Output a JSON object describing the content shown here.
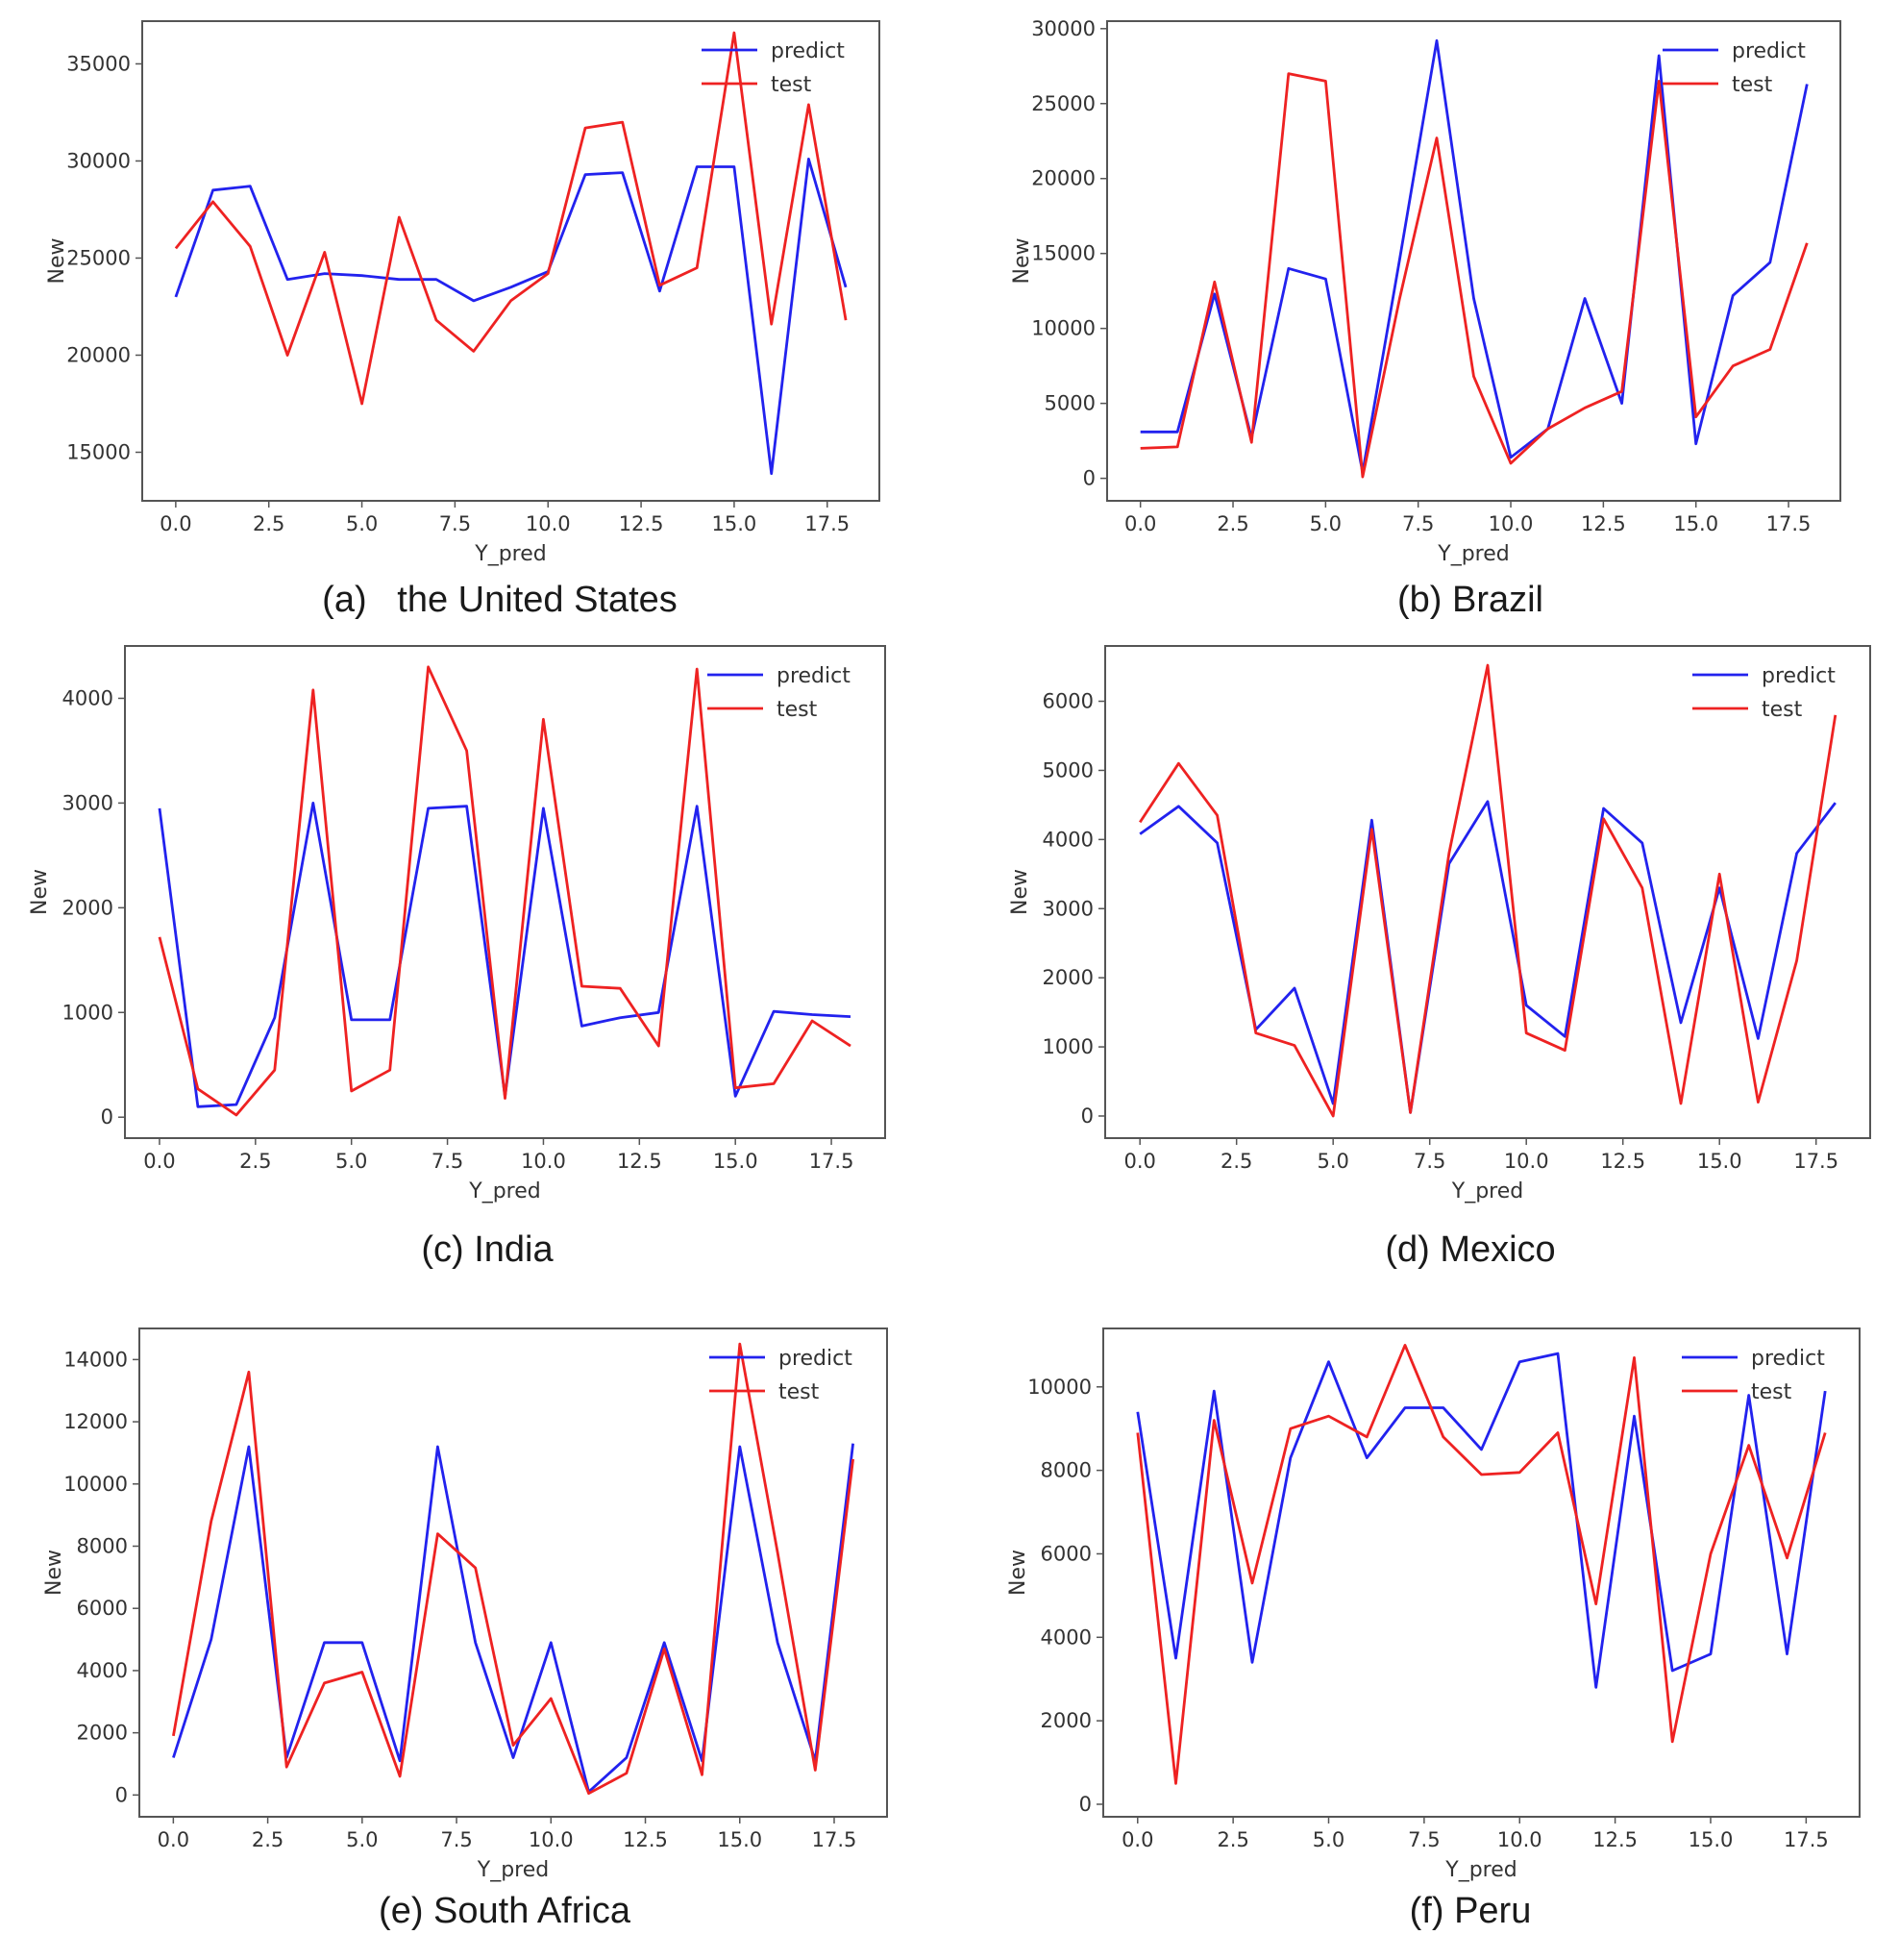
{
  "figure": {
    "colors": {
      "predict": "#2222ee",
      "test": "#ee2222",
      "axes": "#555555",
      "text": "#333333"
    },
    "legend": {
      "predict_label": "predict",
      "test_label": "test",
      "placement": "top-right"
    }
  },
  "chart_data": [
    {
      "type": "line",
      "title": "(a)   the United States",
      "xlabel": "Y_pred",
      "ylabel": "New",
      "xlim": [
        -0.9,
        18.9
      ],
      "ylim": [
        12500,
        37200
      ],
      "xticks": [
        0,
        2.5,
        5,
        7.5,
        10,
        12.5,
        15,
        17.5
      ],
      "xtick_labels": [
        "0.0",
        "2.5",
        "5.0",
        "7.5",
        "10.0",
        "12.5",
        "15.0",
        "17.5"
      ],
      "yticks": [
        15000,
        20000,
        25000,
        30000,
        35000
      ],
      "ytick_labels": [
        "15000",
        "20000",
        "25000",
        "30000",
        "35000"
      ],
      "x": [
        0,
        1,
        2,
        3,
        4,
        5,
        6,
        7,
        8,
        9,
        10,
        11,
        12,
        13,
        14,
        15,
        16,
        17,
        18
      ],
      "series": [
        {
          "name": "predict",
          "values": [
            23000,
            28500,
            28700,
            23900,
            24200,
            24100,
            23900,
            23900,
            22800,
            23500,
            24300,
            29300,
            29400,
            23300,
            29700,
            29700,
            13900,
            30100,
            23500
          ]
        },
        {
          "name": "test",
          "values": [
            25500,
            27900,
            25600,
            20000,
            25300,
            17500,
            27100,
            21800,
            20200,
            22800,
            24200,
            31700,
            32000,
            23600,
            24500,
            36600,
            21600,
            32900,
            21800
          ]
        }
      ]
    },
    {
      "type": "line",
      "title": "(b) Brazil",
      "xlabel": "Y_pred",
      "ylabel": "New",
      "xlim": [
        -0.9,
        18.9
      ],
      "ylim": [
        -1500,
        30500
      ],
      "xticks": [
        0,
        2.5,
        5,
        7.5,
        10,
        12.5,
        15,
        17.5
      ],
      "xtick_labels": [
        "0.0",
        "2.5",
        "5.0",
        "7.5",
        "10.0",
        "12.5",
        "15.0",
        "17.5"
      ],
      "yticks": [
        0,
        5000,
        10000,
        15000,
        20000,
        25000,
        30000
      ],
      "ytick_labels": [
        "0",
        "5000",
        "10000",
        "15000",
        "20000",
        "25000",
        "30000"
      ],
      "x": [
        0,
        1,
        2,
        3,
        4,
        5,
        6,
        7,
        8,
        9,
        10,
        11,
        12,
        13,
        14,
        15,
        16,
        17,
        18
      ],
      "series": [
        {
          "name": "predict",
          "values": [
            3100,
            3100,
            12300,
            2700,
            14000,
            13300,
            400,
            14600,
            29200,
            12000,
            1400,
            3300,
            12000,
            5000,
            28200,
            2300,
            12200,
            14400,
            26300
          ]
        },
        {
          "name": "test",
          "values": [
            2000,
            2100,
            13100,
            2400,
            27000,
            26500,
            100,
            12000,
            22700,
            6800,
            1000,
            3300,
            4700,
            5800,
            26500,
            4100,
            7500,
            8600,
            15700
          ]
        }
      ]
    },
    {
      "type": "line",
      "title": "(c) India",
      "xlabel": "Y_pred",
      "ylabel": "New",
      "xlim": [
        -0.9,
        18.9
      ],
      "ylim": [
        -200,
        4500
      ],
      "xticks": [
        0,
        2.5,
        5,
        7.5,
        10,
        12.5,
        15,
        17.5
      ],
      "xtick_labels": [
        "0.0",
        "2.5",
        "5.0",
        "7.5",
        "10.0",
        "12.5",
        "15.0",
        "17.5"
      ],
      "yticks": [
        0,
        1000,
        2000,
        3000,
        4000
      ],
      "ytick_labels": [
        "0",
        "1000",
        "2000",
        "3000",
        "4000"
      ],
      "x": [
        0,
        1,
        2,
        3,
        4,
        5,
        6,
        7,
        8,
        9,
        10,
        11,
        12,
        13,
        14,
        15,
        16,
        17,
        18
      ],
      "series": [
        {
          "name": "predict",
          "values": [
            2950,
            100,
            120,
            950,
            3000,
            930,
            930,
            2950,
            2970,
            200,
            2950,
            870,
            950,
            1000,
            2970,
            200,
            1010,
            980,
            960
          ]
        },
        {
          "name": "test",
          "values": [
            1720,
            270,
            20,
            450,
            4080,
            250,
            450,
            4300,
            3500,
            180,
            3800,
            1250,
            1230,
            680,
            4280,
            280,
            320,
            920,
            680
          ]
        }
      ]
    },
    {
      "type": "line",
      "title": "(d) Mexico",
      "xlabel": "Y_pred",
      "ylabel": "New",
      "xlim": [
        -0.9,
        18.9
      ],
      "ylim": [
        -320,
        6800
      ],
      "xticks": [
        0,
        2.5,
        5,
        7.5,
        10,
        12.5,
        15,
        17.5
      ],
      "xtick_labels": [
        "0.0",
        "2.5",
        "5.0",
        "7.5",
        "10.0",
        "12.5",
        "15.0",
        "17.5"
      ],
      "yticks": [
        0,
        1000,
        2000,
        3000,
        4000,
        5000,
        6000
      ],
      "ytick_labels": [
        "0",
        "1000",
        "2000",
        "3000",
        "4000",
        "5000",
        "6000"
      ],
      "x": [
        0,
        1,
        2,
        3,
        4,
        5,
        6,
        7,
        8,
        9,
        10,
        11,
        12,
        13,
        14,
        15,
        16,
        17,
        18
      ],
      "series": [
        {
          "name": "predict",
          "values": [
            4080,
            4480,
            3950,
            1250,
            1850,
            180,
            4280,
            50,
            3650,
            4550,
            1600,
            1150,
            4450,
            3950,
            1350,
            3300,
            1120,
            3800,
            4530
          ]
        },
        {
          "name": "test",
          "values": [
            4250,
            5100,
            4350,
            1200,
            1020,
            0,
            4150,
            50,
            3800,
            6520,
            1200,
            950,
            4300,
            3300,
            180,
            3500,
            200,
            2250,
            5800
          ]
        }
      ]
    },
    {
      "type": "line",
      "title": "(e) South Africa",
      "xlabel": "Y_pred",
      "ylabel": "New",
      "xlim": [
        -0.9,
        18.9
      ],
      "ylim": [
        -700,
        15000
      ],
      "xticks": [
        0,
        2.5,
        5,
        7.5,
        10,
        12.5,
        15,
        17.5
      ],
      "xtick_labels": [
        "0.0",
        "2.5",
        "5.0",
        "7.5",
        "10.0",
        "12.5",
        "15.0",
        "17.5"
      ],
      "yticks": [
        0,
        2000,
        4000,
        6000,
        8000,
        10000,
        12000,
        14000
      ],
      "ytick_labels": [
        "0",
        "2000",
        "4000",
        "6000",
        "8000",
        "10000",
        "12000",
        "14000"
      ],
      "x": [
        0,
        1,
        2,
        3,
        4,
        5,
        6,
        7,
        8,
        9,
        10,
        11,
        12,
        13,
        14,
        15,
        16,
        17,
        18
      ],
      "series": [
        {
          "name": "predict",
          "values": [
            1200,
            5000,
            11200,
            1200,
            4900,
            4900,
            1100,
            11200,
            4900,
            1200,
            4900,
            100,
            1200,
            4900,
            1100,
            11200,
            4900,
            1100,
            11300
          ]
        },
        {
          "name": "test",
          "values": [
            1900,
            8800,
            13600,
            900,
            3600,
            3950,
            600,
            8400,
            7300,
            1600,
            3100,
            50,
            700,
            4700,
            650,
            14500,
            7800,
            800,
            10800
          ]
        }
      ]
    },
    {
      "type": "line",
      "title": "(f) Peru",
      "xlabel": "Y_pred",
      "ylabel": "New",
      "xlim": [
        -0.9,
        18.9
      ],
      "ylim": [
        -300,
        11400
      ],
      "xticks": [
        0,
        2.5,
        5,
        7.5,
        10,
        12.5,
        15,
        17.5
      ],
      "xtick_labels": [
        "0.0",
        "2.5",
        "5.0",
        "7.5",
        "10.0",
        "12.5",
        "15.0",
        "17.5"
      ],
      "yticks": [
        0,
        2000,
        4000,
        6000,
        8000,
        10000
      ],
      "ytick_labels": [
        "0",
        "2000",
        "4000",
        "6000",
        "8000",
        "10000"
      ],
      "x": [
        0,
        1,
        2,
        3,
        4,
        5,
        6,
        7,
        8,
        9,
        10,
        11,
        12,
        13,
        14,
        15,
        16,
        17,
        18
      ],
      "series": [
        {
          "name": "predict",
          "values": [
            9400,
            3500,
            9900,
            3400,
            8300,
            10600,
            8300,
            9500,
            9500,
            8500,
            10600,
            10800,
            2800,
            9300,
            3200,
            3600,
            9800,
            3600,
            9900
          ]
        },
        {
          "name": "test",
          "values": [
            8900,
            500,
            9200,
            5300,
            9000,
            9300,
            8800,
            11000,
            8800,
            7900,
            7950,
            8900,
            4800,
            10700,
            1500,
            6000,
            8600,
            5900,
            8900
          ]
        }
      ]
    }
  ]
}
